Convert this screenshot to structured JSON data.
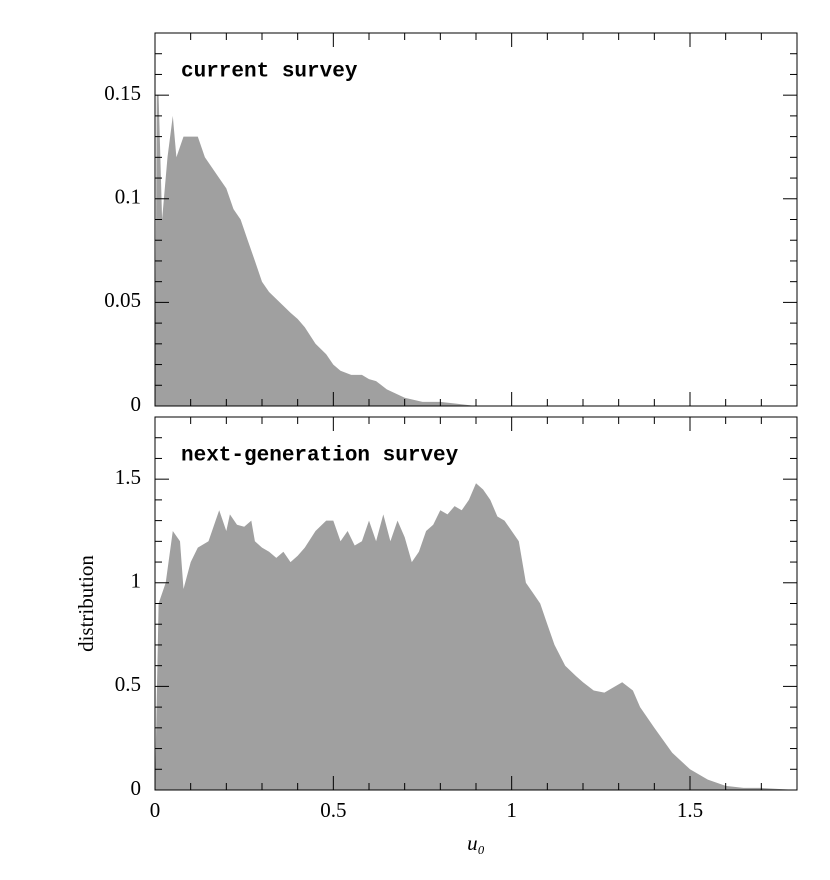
{
  "chart_data": [
    {
      "type": "area",
      "annotation": "current survey",
      "color": "#a0a0a0",
      "x": [
        0,
        0.005,
        0.01,
        0.02,
        0.035,
        0.05,
        0.06,
        0.08,
        0.1,
        0.12,
        0.14,
        0.16,
        0.18,
        0.2,
        0.22,
        0.24,
        0.26,
        0.28,
        0.3,
        0.32,
        0.35,
        0.38,
        0.4,
        0.42,
        0.45,
        0.48,
        0.5,
        0.52,
        0.55,
        0.58,
        0.6,
        0.62,
        0.65,
        0.7,
        0.75,
        0.8,
        0.85,
        0.9,
        1.8
      ],
      "values": [
        0,
        0.15,
        0.15,
        0.09,
        0.12,
        0.14,
        0.12,
        0.13,
        0.13,
        0.13,
        0.12,
        0.115,
        0.11,
        0.105,
        0.095,
        0.09,
        0.08,
        0.07,
        0.06,
        0.055,
        0.05,
        0.045,
        0.042,
        0.038,
        0.03,
        0.025,
        0.02,
        0.017,
        0.015,
        0.015,
        0.013,
        0.012,
        0.008,
        0.004,
        0.002,
        0.002,
        0.001,
        0,
        0
      ],
      "xlim": [
        0,
        1.8
      ],
      "xticks": [
        0,
        0.5,
        1,
        1.5
      ],
      "xminorticks": [
        0.1,
        0.2,
        0.3,
        0.4,
        0.6,
        0.7,
        0.8,
        0.9,
        1.1,
        1.2,
        1.3,
        1.4,
        1.6,
        1.7
      ],
      "ylim": [
        0,
        0.18
      ],
      "yticks": [
        0,
        0.05,
        0.1,
        0.15
      ],
      "yminorticks": [
        0.01,
        0.02,
        0.03,
        0.04,
        0.06,
        0.07,
        0.08,
        0.09,
        0.11,
        0.12,
        0.13,
        0.14,
        0.16,
        0.17
      ]
    },
    {
      "type": "area",
      "annotation": "next-generation survey",
      "color": "#a0a0a0",
      "xlabel": "u₀",
      "ylabel": "distribution",
      "x": [
        0,
        0.01,
        0.03,
        0.05,
        0.07,
        0.08,
        0.1,
        0.12,
        0.15,
        0.17,
        0.18,
        0.2,
        0.21,
        0.23,
        0.25,
        0.27,
        0.28,
        0.3,
        0.32,
        0.34,
        0.36,
        0.38,
        0.4,
        0.42,
        0.45,
        0.48,
        0.5,
        0.52,
        0.54,
        0.56,
        0.58,
        0.6,
        0.62,
        0.64,
        0.66,
        0.68,
        0.7,
        0.72,
        0.74,
        0.76,
        0.78,
        0.8,
        0.82,
        0.84,
        0.86,
        0.88,
        0.9,
        0.92,
        0.94,
        0.96,
        0.98,
        1,
        1.02,
        1.04,
        1.06,
        1.08,
        1.1,
        1.12,
        1.15,
        1.18,
        1.2,
        1.23,
        1.26,
        1.29,
        1.31,
        1.34,
        1.36,
        1.4,
        1.45,
        1.5,
        1.55,
        1.6,
        1.65,
        1.7,
        1.75,
        1.8
      ],
      "values": [
        0,
        0.9,
        1,
        1.25,
        1.2,
        0.97,
        1.1,
        1.17,
        1.2,
        1.3,
        1.35,
        1.25,
        1.33,
        1.28,
        1.27,
        1.3,
        1.2,
        1.17,
        1.15,
        1.12,
        1.15,
        1.1,
        1.13,
        1.17,
        1.25,
        1.3,
        1.3,
        1.2,
        1.25,
        1.18,
        1.2,
        1.3,
        1.2,
        1.33,
        1.2,
        1.3,
        1.22,
        1.1,
        1.15,
        1.25,
        1.28,
        1.35,
        1.33,
        1.37,
        1.35,
        1.4,
        1.48,
        1.45,
        1.4,
        1.32,
        1.3,
        1.25,
        1.2,
        1,
        0.95,
        0.9,
        0.8,
        0.7,
        0.6,
        0.55,
        0.52,
        0.48,
        0.47,
        0.5,
        0.52,
        0.48,
        0.4,
        0.3,
        0.18,
        0.1,
        0.05,
        0.02,
        0.01,
        0.01,
        0.005,
        0
      ],
      "xlim": [
        0,
        1.8
      ],
      "xticks": [
        0,
        0.5,
        1,
        1.5
      ],
      "xminorticks": [
        0.1,
        0.2,
        0.3,
        0.4,
        0.6,
        0.7,
        0.8,
        0.9,
        1.1,
        1.2,
        1.3,
        1.4,
        1.6,
        1.7
      ],
      "ylim": [
        0,
        1.8
      ],
      "yticks": [
        0,
        0.5,
        1,
        1.5
      ],
      "yminorticks": [
        0.1,
        0.2,
        0.3,
        0.4,
        0.6,
        0.7,
        0.8,
        0.9,
        1.1,
        1.2,
        1.3,
        1.4,
        1.6,
        1.7
      ]
    }
  ]
}
